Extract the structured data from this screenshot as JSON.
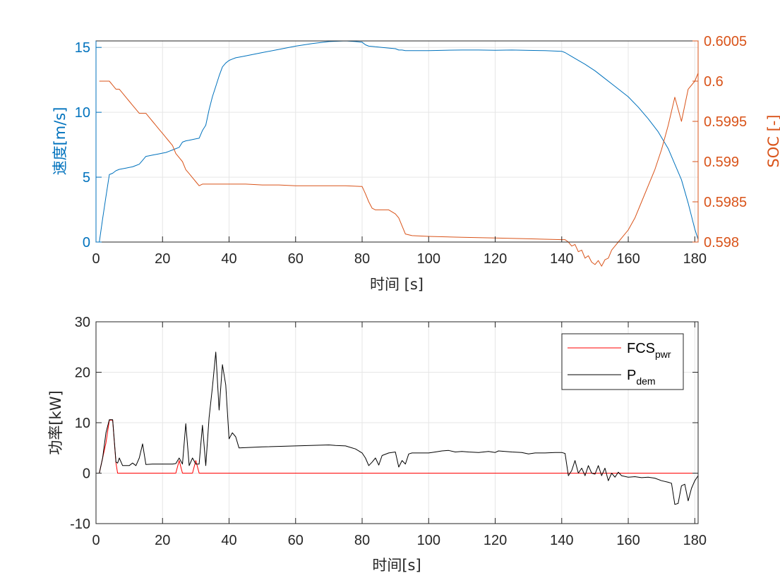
{
  "colors": {
    "speed": "#0072BD",
    "soc": "#D95319",
    "fcs": "#FF0000",
    "pdem": "#000000",
    "axis": "#262626",
    "grid": "#e6e6e6"
  },
  "chart_data": [
    {
      "type": "line",
      "xlabel": "时间 [s]",
      "ylabel_left": "速度[m/s]",
      "ylabel_right": "SOC [-]",
      "xlim": [
        0,
        181
      ],
      "ylim_left": [
        0,
        15.5
      ],
      "ylim_right": [
        0.598,
        0.6005
      ],
      "xticks": [
        "0",
        "20",
        "40",
        "60",
        "80",
        "100",
        "120",
        "140",
        "160",
        "180"
      ],
      "yticks_left": [
        "0",
        "5",
        "10",
        "15"
      ],
      "yticks_right": [
        "0.598",
        "0.5985",
        "0.599",
        "0.5995",
        "0.6",
        "0.6005"
      ],
      "grid": true,
      "series": [
        {
          "axis": "left",
          "x": [
            1,
            2,
            3,
            4,
            5,
            6,
            7,
            8,
            9,
            10,
            11,
            12,
            13,
            14,
            15,
            16,
            17,
            18,
            19,
            20,
            21,
            22,
            23,
            24,
            25,
            26,
            27,
            28,
            29,
            30,
            31,
            32,
            33,
            34,
            35,
            36,
            37,
            38,
            39,
            40,
            41,
            42,
            44,
            46,
            50,
            55,
            60,
            65,
            70,
            75,
            78,
            80,
            81,
            82,
            83,
            84,
            86,
            88,
            90,
            91,
            92,
            93,
            95,
            100,
            105,
            110,
            115,
            120,
            125,
            130,
            135,
            140,
            141,
            143,
            145,
            147,
            150,
            153,
            156,
            160,
            163,
            166,
            169,
            172,
            174,
            176,
            178,
            180,
            181
          ],
          "y": [
            0,
            1.8,
            3.5,
            5.2,
            5.3,
            5.5,
            5.6,
            5.65,
            5.7,
            5.75,
            5.8,
            5.9,
            6.0,
            6.3,
            6.6,
            6.65,
            6.7,
            6.75,
            6.8,
            6.85,
            6.9,
            7.0,
            7.1,
            7.2,
            7.3,
            7.7,
            7.8,
            7.85,
            7.9,
            7.95,
            8.0,
            8.6,
            9.0,
            10.2,
            11.2,
            12.0,
            12.8,
            13.5,
            13.8,
            14.0,
            14.1,
            14.2,
            14.3,
            14.4,
            14.6,
            14.85,
            15.1,
            15.3,
            15.45,
            15.5,
            15.45,
            15.4,
            15.2,
            15.1,
            15.08,
            15.05,
            15.0,
            14.95,
            14.9,
            14.8,
            14.8,
            14.75,
            14.75,
            14.75,
            14.78,
            14.8,
            14.8,
            14.78,
            14.8,
            14.77,
            14.75,
            14.7,
            14.6,
            14.3,
            14.0,
            13.7,
            13.2,
            12.6,
            12.0,
            11.2,
            10.4,
            9.5,
            8.5,
            7.2,
            6.0,
            4.8,
            3.0,
            1.0,
            0.2
          ]
        },
        {
          "axis": "right",
          "x": [
            1,
            4,
            5,
            6,
            7,
            8,
            9,
            10,
            11,
            12,
            13,
            14,
            15,
            16,
            17,
            18,
            19,
            20,
            21,
            22,
            23,
            24,
            25,
            26,
            27,
            28,
            29,
            30,
            31,
            32,
            35,
            40,
            45,
            50,
            55,
            60,
            65,
            70,
            75,
            80,
            81,
            82,
            83,
            84,
            86,
            88,
            90,
            91,
            92,
            93,
            95,
            100,
            110,
            120,
            130,
            140,
            141,
            142,
            143,
            144,
            145,
            146,
            147,
            148,
            149,
            150,
            151,
            152,
            153,
            154,
            155,
            156,
            157,
            158,
            160,
            162,
            164,
            166,
            168,
            170,
            172,
            174,
            176,
            178,
            180,
            181
          ],
          "y": [
            0.6,
            0.6,
            0.59995,
            0.5999,
            0.5999,
            0.59985,
            0.5998,
            0.59975,
            0.5997,
            0.59965,
            0.5996,
            0.5996,
            0.5996,
            0.59955,
            0.5995,
            0.59945,
            0.5994,
            0.59935,
            0.5993,
            0.59925,
            0.5992,
            0.5991,
            0.59905,
            0.599,
            0.5989,
            0.59885,
            0.5988,
            0.59875,
            0.5987,
            0.59872,
            0.59872,
            0.59872,
            0.59872,
            0.59871,
            0.59871,
            0.5987,
            0.5987,
            0.5987,
            0.5987,
            0.59869,
            0.5986,
            0.5985,
            0.59842,
            0.5984,
            0.5984,
            0.5984,
            0.59835,
            0.5983,
            0.5982,
            0.5981,
            0.59808,
            0.59807,
            0.59806,
            0.59805,
            0.59804,
            0.59803,
            0.59803,
            0.598,
            0.59795,
            0.59797,
            0.59788,
            0.5979,
            0.5978,
            0.59783,
            0.59775,
            0.59772,
            0.59777,
            0.5977,
            0.59778,
            0.5978,
            0.5979,
            0.59795,
            0.598,
            0.59805,
            0.59815,
            0.5983,
            0.5985,
            0.5987,
            0.5989,
            0.59915,
            0.59945,
            0.5998,
            0.5995,
            0.5999,
            0.6,
            0.6001
          ]
        }
      ]
    },
    {
      "type": "line",
      "xlabel": "时间[s]",
      "ylabel": "功率[kW]",
      "xlim": [
        0,
        181
      ],
      "ylim": [
        -10,
        30
      ],
      "xticks": [
        "0",
        "20",
        "40",
        "60",
        "80",
        "100",
        "120",
        "140",
        "160",
        "180"
      ],
      "yticks": [
        "-10",
        "0",
        "10",
        "20",
        "30"
      ],
      "grid": true,
      "legend_position": "top-right",
      "series": [
        {
          "name": "FCS",
          "name_sub": "pwr",
          "x": [
            1,
            3,
            4,
            5,
            6,
            6.5,
            7,
            8,
            9,
            10,
            11,
            12,
            13,
            14,
            15,
            17,
            20,
            23,
            24,
            25,
            26,
            27,
            28,
            29,
            30,
            31,
            32,
            33,
            34,
            35,
            36,
            37,
            38,
            39,
            40,
            41,
            42,
            43,
            50,
            60,
            70,
            75,
            78,
            80,
            81,
            82,
            83,
            84,
            85,
            86,
            88,
            90,
            91,
            92,
            93,
            94,
            95,
            100,
            105,
            110,
            115,
            120,
            125,
            130,
            135,
            140,
            141,
            142,
            143,
            144,
            145,
            146,
            147,
            148,
            150,
            152,
            154,
            156,
            160,
            170,
            181
          ],
          "y": [
            0,
            6,
            10.5,
            10.5,
            2,
            0,
            0,
            0,
            0,
            0,
            0,
            0,
            0,
            0,
            0,
            0,
            0,
            0,
            0,
            2.5,
            0,
            0,
            0,
            0,
            2.5,
            0,
            0,
            0,
            0,
            0,
            0,
            0,
            0,
            0,
            0,
            0,
            0,
            0,
            0,
            0,
            0,
            0,
            0,
            0,
            0,
            0,
            0,
            0,
            0,
            0,
            0,
            0,
            0,
            0,
            0,
            0,
            0,
            0,
            0,
            0,
            0,
            0,
            0,
            0,
            0,
            0,
            0,
            0,
            0,
            0,
            0,
            0,
            0,
            0,
            0,
            0,
            0,
            0,
            0,
            0,
            0
          ]
        },
        {
          "name": "P",
          "name_sub": "dem",
          "x": [
            1,
            2,
            3,
            4,
            5,
            6,
            6.5,
            7,
            8,
            9,
            10,
            11,
            12,
            13,
            14,
            15,
            17,
            20,
            23,
            24,
            25,
            26,
            27,
            28,
            29,
            30,
            31,
            32,
            33,
            34,
            35,
            36,
            37,
            38,
            39,
            40,
            41,
            42,
            43,
            50,
            60,
            70,
            72,
            75,
            78,
            80,
            81,
            82,
            83,
            84,
            85,
            86,
            88,
            90,
            91,
            92,
            93,
            94,
            95,
            100,
            102,
            104,
            106,
            108,
            110,
            112,
            115,
            118,
            120,
            121,
            125,
            128,
            130,
            132,
            135,
            138,
            140,
            141,
            142,
            143,
            144,
            145,
            146,
            147,
            148,
            149,
            150,
            151,
            152,
            153,
            154,
            155,
            156,
            157,
            158,
            160,
            162,
            164,
            166,
            168,
            170,
            172,
            173,
            174,
            175,
            176,
            177,
            178,
            179,
            180,
            181
          ],
          "y": [
            0,
            3,
            8,
            10.6,
            10.6,
            2.2,
            2,
            3,
            1.5,
            1.5,
            1.5,
            2,
            1.5,
            3,
            5.8,
            1.7,
            1.8,
            1.8,
            1.8,
            1.9,
            3,
            1.8,
            9.8,
            1.5,
            3,
            1.8,
            1.8,
            9.5,
            1.5,
            11,
            17,
            24,
            12.5,
            21.5,
            17.5,
            6.8,
            8,
            7.2,
            5,
            5.2,
            5.4,
            5.6,
            5.5,
            5.4,
            4.8,
            4,
            3,
            1.5,
            2.2,
            3,
            1.6,
            3.5,
            4,
            4.2,
            1.2,
            2.5,
            1.8,
            3.8,
            4,
            4,
            4.2,
            4.4,
            4.5,
            4.2,
            4.3,
            4.2,
            4.1,
            4.3,
            4.1,
            4.4,
            4.2,
            4.1,
            3.8,
            4,
            4,
            4.1,
            4.1,
            3.9,
            -0.5,
            0.5,
            2.5,
            0,
            1,
            -0.5,
            1.5,
            0,
            -0.2,
            1.5,
            -0.5,
            1,
            -1.5,
            0,
            -0.8,
            0.2,
            -0.5,
            -0.8,
            -0.7,
            -0.9,
            -0.8,
            -1,
            -1.5,
            -1.8,
            -2,
            -6.2,
            -6,
            -2.5,
            -2.2,
            -5.5,
            -3,
            -1.5,
            -0.5
          ]
        }
      ]
    }
  ]
}
